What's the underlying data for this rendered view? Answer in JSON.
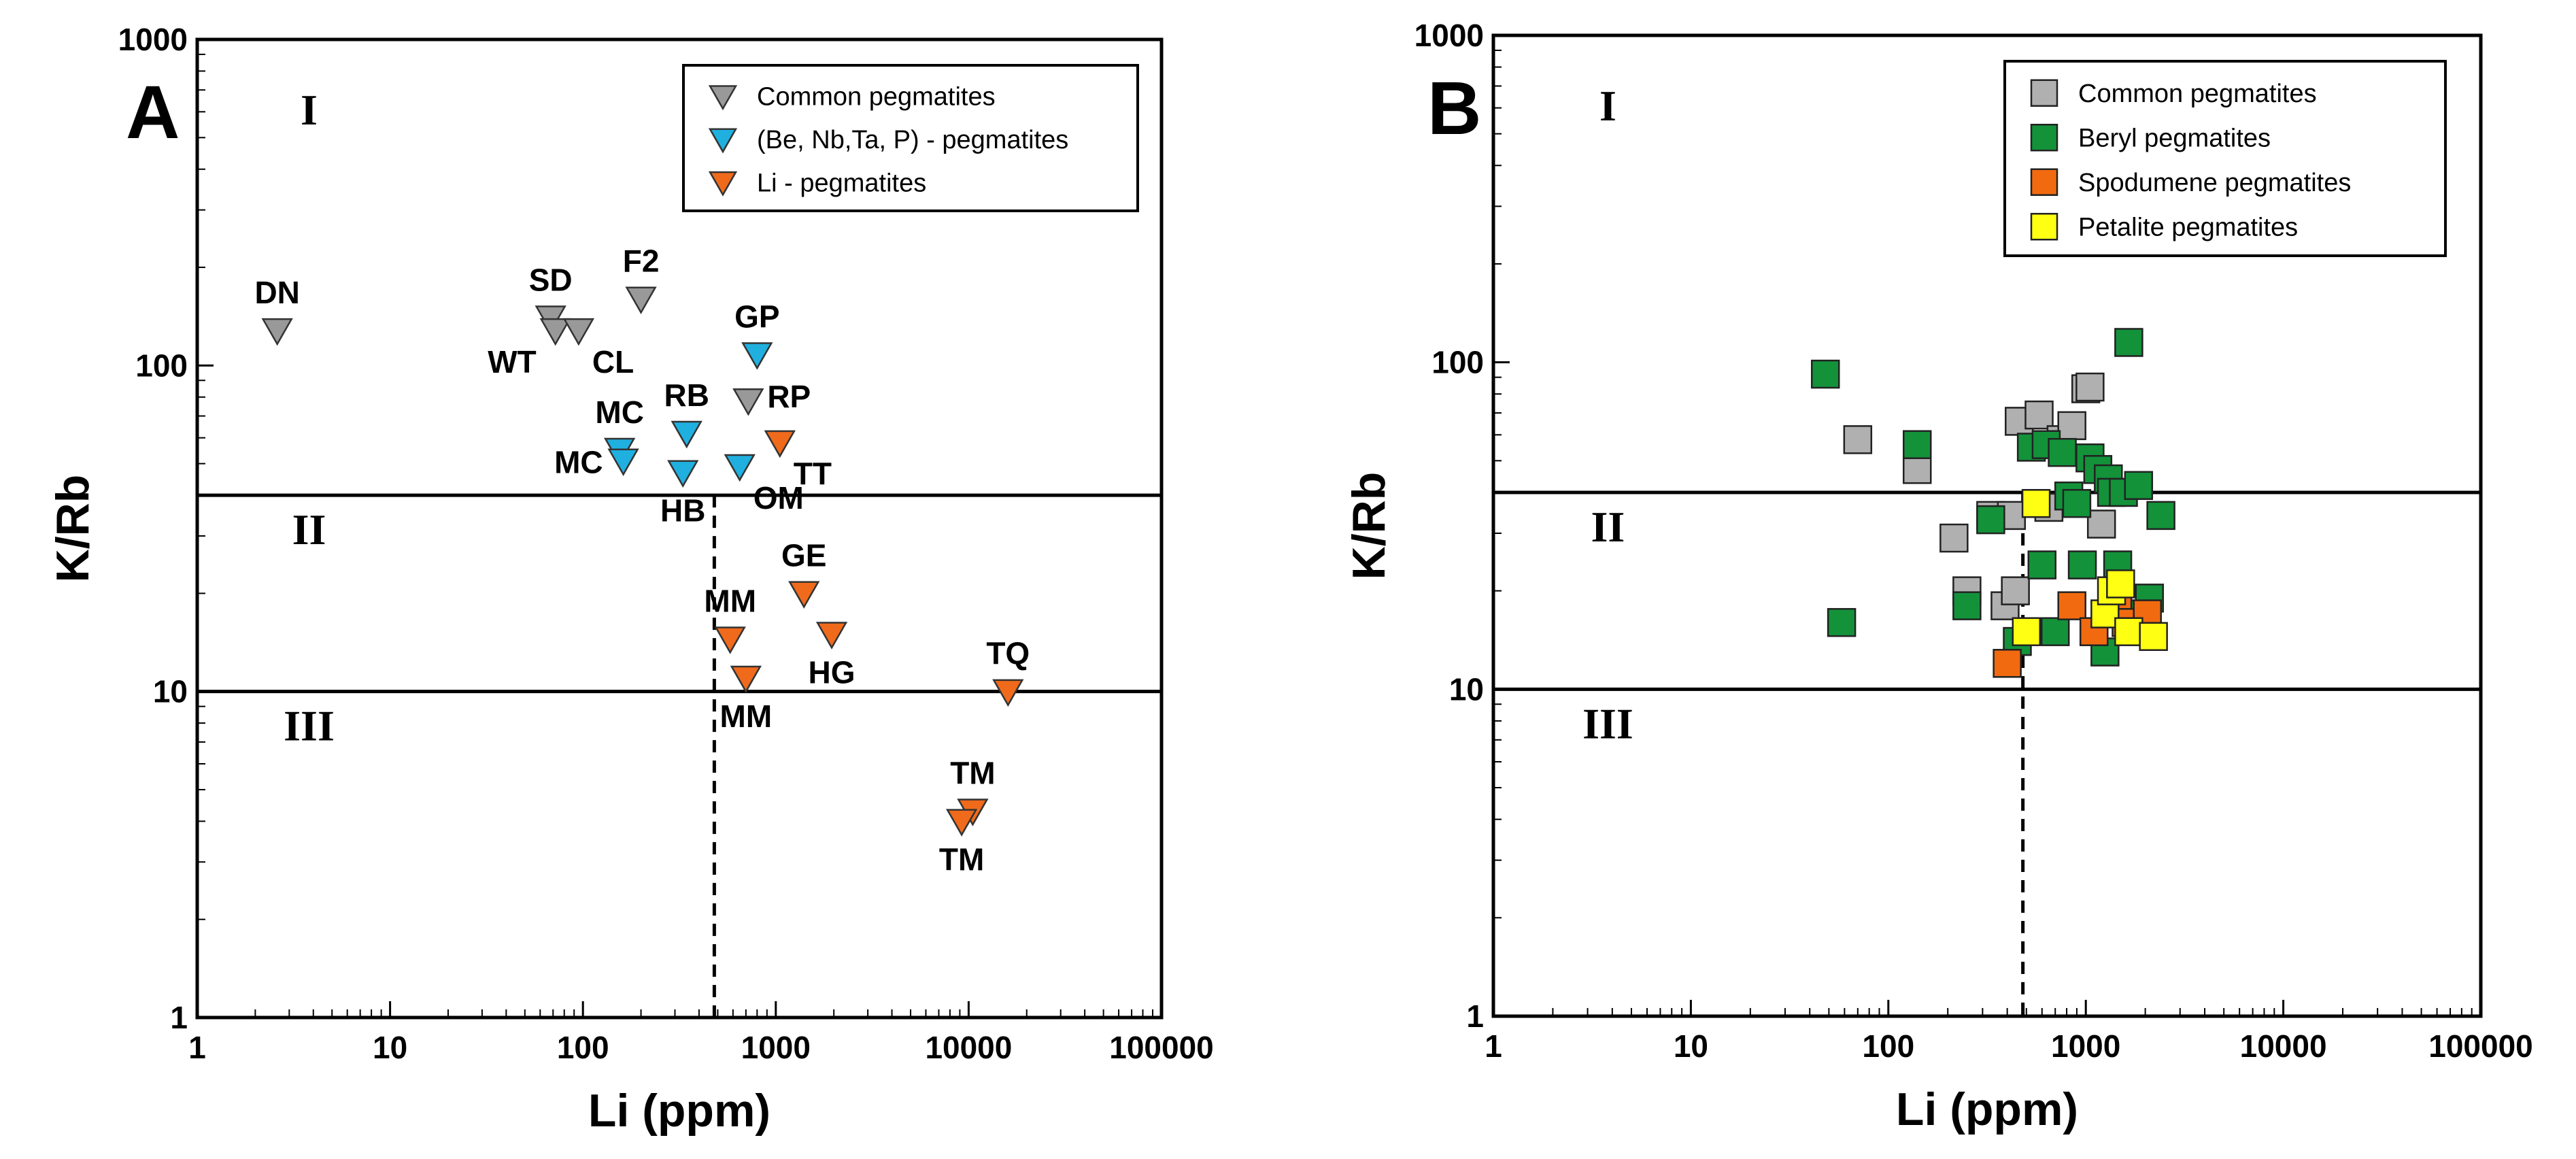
{
  "colors": {
    "common": "#999999",
    "rare_metal": "#1fb0e0",
    "li": "#f06a1c",
    "common_sq": "#b0b0b0",
    "beryl": "#13923a",
    "spodumene": "#f26a10",
    "petalite": "#ffff14"
  },
  "chart_data": [
    {
      "type": "scatter",
      "panel": "A",
      "xlabel": "Li (ppm)",
      "ylabel": "K/Rb",
      "xscale": "log",
      "yscale": "log",
      "xlim": [
        1,
        100000
      ],
      "ylim": [
        1,
        1000
      ],
      "xticks": [
        "1",
        "10",
        "100",
        "1000",
        "10000",
        "100000"
      ],
      "yticks": [
        "1",
        "10",
        "100",
        "1000"
      ],
      "zone_labels": [
        "I",
        "II",
        "III"
      ],
      "zone_boundaries_krb": [
        40,
        10
      ],
      "li_cutoff_ppm": 480,
      "legend": {
        "position": "top-right",
        "entries": [
          {
            "label": "Common pegmatites",
            "series": "common"
          },
          {
            "label": "(Be, Nb,Ta, P) - pegmatites",
            "series": "rare_metal"
          },
          {
            "label": "Li - pegmatites",
            "series": "li"
          }
        ]
      },
      "series": [
        {
          "name": "common",
          "marker": "triangle-down",
          "points": [
            {
              "label": "DN",
              "x": 2.6,
              "y": 128,
              "label_pos": "above"
            },
            {
              "label": "SD",
              "x": 68,
              "y": 140,
              "label_pos": "above"
            },
            {
              "label": "WT",
              "x": 72,
              "y": 128,
              "label_pos": "below-left"
            },
            {
              "label": "CL",
              "x": 95,
              "y": 128,
              "label_pos": "below-right"
            },
            {
              "label": "F2",
              "x": 200,
              "y": 160,
              "label_pos": "above"
            },
            {
              "label": "RP",
              "x": 720,
              "y": 78,
              "label_pos": "right"
            }
          ]
        },
        {
          "name": "rare_metal",
          "marker": "triangle-down",
          "points": [
            {
              "label": "GP",
              "x": 800,
              "y": 108,
              "label_pos": "above"
            },
            {
              "label": "MC",
              "x": 155,
              "y": 55,
              "label_pos": "above"
            },
            {
              "label": "MC",
              "x": 162,
              "y": 51,
              "label_pos": "left"
            },
            {
              "label": "RB",
              "x": 345,
              "y": 62,
              "label_pos": "above"
            },
            {
              "label": "HB",
              "x": 330,
              "y": 47,
              "label_pos": "below"
            },
            {
              "label": "OM",
              "x": 650,
              "y": 49,
              "label_pos": "below-right"
            }
          ]
        },
        {
          "name": "li",
          "marker": "triangle-down",
          "points": [
            {
              "label": "TT",
              "x": 1050,
              "y": 58,
              "label_pos": "below-right"
            },
            {
              "label": "GE",
              "x": 1400,
              "y": 20,
              "label_pos": "above"
            },
            {
              "label": "MM",
              "x": 580,
              "y": 14.5,
              "label_pos": "above"
            },
            {
              "label": "HG",
              "x": 1950,
              "y": 15,
              "label_pos": "below"
            },
            {
              "label": "MM",
              "x": 700,
              "y": 11,
              "label_pos": "below"
            },
            {
              "label": "TQ",
              "x": 16000,
              "y": 10,
              "label_pos": "above"
            },
            {
              "label": "TM",
              "x": 10500,
              "y": 4.3,
              "label_pos": "above"
            },
            {
              "label": "TM",
              "x": 9200,
              "y": 4.0,
              "label_pos": "below"
            }
          ]
        }
      ]
    },
    {
      "type": "scatter",
      "panel": "B",
      "xlabel": "Li (ppm)",
      "ylabel": "K/Rb",
      "xscale": "log",
      "yscale": "log",
      "xlim": [
        1,
        100000
      ],
      "ylim": [
        1,
        1000
      ],
      "xticks": [
        "1",
        "10",
        "100",
        "1000",
        "10000",
        "100000"
      ],
      "yticks": [
        "1",
        "10",
        "100",
        "1000"
      ],
      "zone_labels": [
        "I",
        "II",
        "III"
      ],
      "zone_boundaries_krb": [
        40,
        10
      ],
      "li_cutoff_ppm": 480,
      "legend": {
        "position": "top-right",
        "entries": [
          {
            "label": "Common pegmatites",
            "series": "common_sq"
          },
          {
            "label": "Beryl pegmatites",
            "series": "beryl"
          },
          {
            "label": "Spodumene pegmatites",
            "series": "spodumene"
          },
          {
            "label": "Petalite pegmatites",
            "series": "petalite"
          }
        ]
      },
      "series": [
        {
          "name": "common_sq",
          "marker": "square",
          "points": [
            {
              "x": 70,
              "y": 58
            },
            {
              "x": 140,
              "y": 47
            },
            {
              "x": 215,
              "y": 29
            },
            {
              "x": 250,
              "y": 20
            },
            {
              "x": 330,
              "y": 34
            },
            {
              "x": 390,
              "y": 18
            },
            {
              "x": 420,
              "y": 34
            },
            {
              "x": 440,
              "y": 20
            },
            {
              "x": 460,
              "y": 66
            },
            {
              "x": 580,
              "y": 69
            },
            {
              "x": 650,
              "y": 36
            },
            {
              "x": 750,
              "y": 58
            },
            {
              "x": 850,
              "y": 64
            },
            {
              "x": 1000,
              "y": 83
            },
            {
              "x": 1050,
              "y": 84
            },
            {
              "x": 1200,
              "y": 32
            }
          ]
        },
        {
          "name": "beryl",
          "marker": "square",
          "points": [
            {
              "x": 48,
              "y": 92
            },
            {
              "x": 58,
              "y": 16
            },
            {
              "x": 140,
              "y": 56
            },
            {
              "x": 250,
              "y": 18
            },
            {
              "x": 330,
              "y": 33
            },
            {
              "x": 450,
              "y": 14
            },
            {
              "x": 530,
              "y": 55
            },
            {
              "x": 600,
              "y": 24
            },
            {
              "x": 630,
              "y": 56
            },
            {
              "x": 700,
              "y": 15
            },
            {
              "x": 760,
              "y": 53
            },
            {
              "x": 820,
              "y": 39
            },
            {
              "x": 900,
              "y": 37
            },
            {
              "x": 960,
              "y": 24
            },
            {
              "x": 1050,
              "y": 51
            },
            {
              "x": 1100,
              "y": 15
            },
            {
              "x": 1150,
              "y": 47
            },
            {
              "x": 1250,
              "y": 13
            },
            {
              "x": 1300,
              "y": 44
            },
            {
              "x": 1350,
              "y": 40
            },
            {
              "x": 1450,
              "y": 24
            },
            {
              "x": 1550,
              "y": 40
            },
            {
              "x": 1650,
              "y": 115
            },
            {
              "x": 1750,
              "y": 17
            },
            {
              "x": 1850,
              "y": 42
            },
            {
              "x": 2100,
              "y": 19
            },
            {
              "x": 2400,
              "y": 34
            }
          ]
        },
        {
          "name": "spodumene",
          "marker": "square",
          "points": [
            {
              "x": 400,
              "y": 12
            },
            {
              "x": 850,
              "y": 18
            },
            {
              "x": 1100,
              "y": 15
            },
            {
              "x": 1450,
              "y": 18
            },
            {
              "x": 1600,
              "y": 16
            },
            {
              "x": 2050,
              "y": 17
            }
          ]
        },
        {
          "name": "petalite",
          "marker": "square",
          "points": [
            {
              "x": 500,
              "y": 15
            },
            {
              "x": 560,
              "y": 37
            },
            {
              "x": 1250,
              "y": 17
            },
            {
              "x": 1350,
              "y": 20
            },
            {
              "x": 1500,
              "y": 21
            },
            {
              "x": 1650,
              "y": 15
            },
            {
              "x": 2200,
              "y": 14.5
            }
          ]
        }
      ]
    }
  ]
}
